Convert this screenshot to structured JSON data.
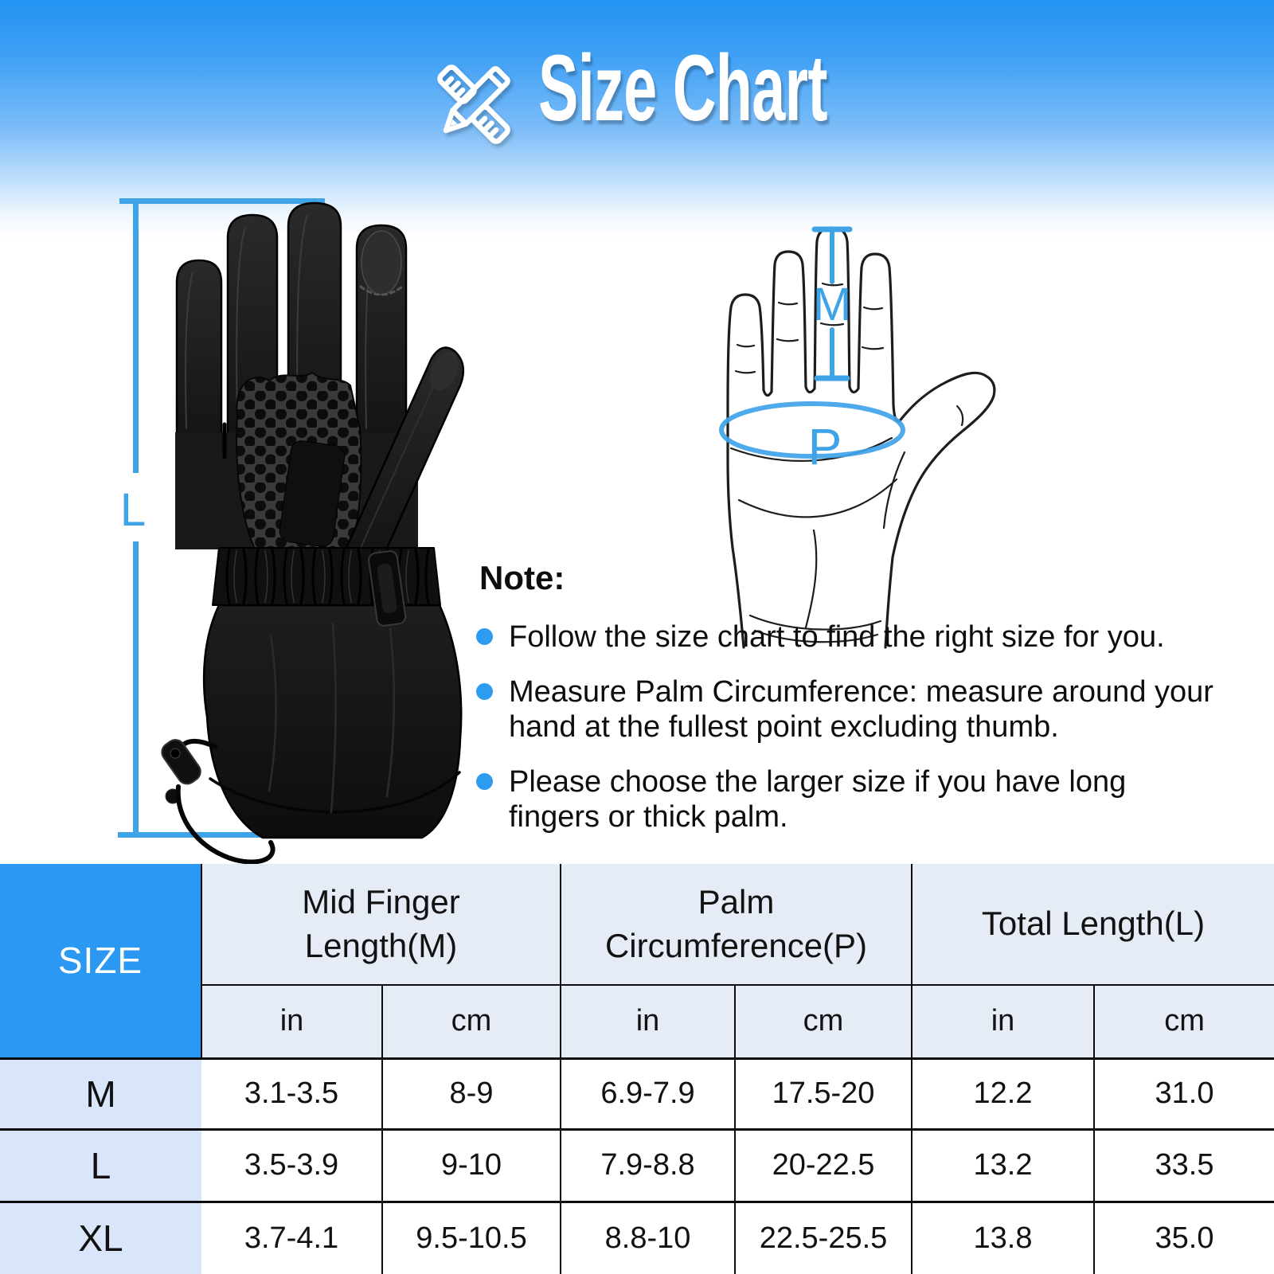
{
  "header": {
    "title": "Size Chart"
  },
  "measurements": {
    "total_length_label": "L",
    "mid_finger_label": "M",
    "palm_circumference_label": "P"
  },
  "note": {
    "heading": "Note:",
    "bullets": [
      "Follow the size chart to find the right size for you.",
      "Measure Palm Circumference: measure around your\nhand at the fullest point excluding thumb.",
      "Please choose the larger size if you have long\nfingers or thick palm."
    ]
  },
  "table": {
    "size_header": "SIZE",
    "groups": [
      {
        "label": "Mid Finger\nLength(M)",
        "units": [
          "in",
          "cm"
        ]
      },
      {
        "label": "Palm\nCircumference(P)",
        "units": [
          "in",
          "cm"
        ]
      },
      {
        "label": "Total Length(L)",
        "units": [
          "in",
          "cm"
        ]
      }
    ],
    "rows": [
      {
        "size": "M",
        "values": [
          "3.1-3.5",
          "8-9",
          "6.9-7.9",
          "17.5-20",
          "12.2",
          "31.0"
        ]
      },
      {
        "size": "L",
        "values": [
          "3.5-3.9",
          "9-10",
          "7.9-8.8",
          "20-22.5",
          "13.2",
          "33.5"
        ]
      },
      {
        "size": "XL",
        "values": [
          "3.7-4.1",
          "9.5-10.5",
          "8.8-10",
          "22.5-25.5",
          "13.8",
          "35.0"
        ]
      }
    ]
  },
  "colors": {
    "banner_gradient_top": "#2493F2",
    "annotation_blue": "#3FA3E8",
    "bullet_blue": "#2D9BF0",
    "size_header_bg": "#2B99F3",
    "group_header_bg": "#E6ECF6",
    "size_column_bg": "#D9E6F9",
    "table_border": "#0C0C0C"
  }
}
